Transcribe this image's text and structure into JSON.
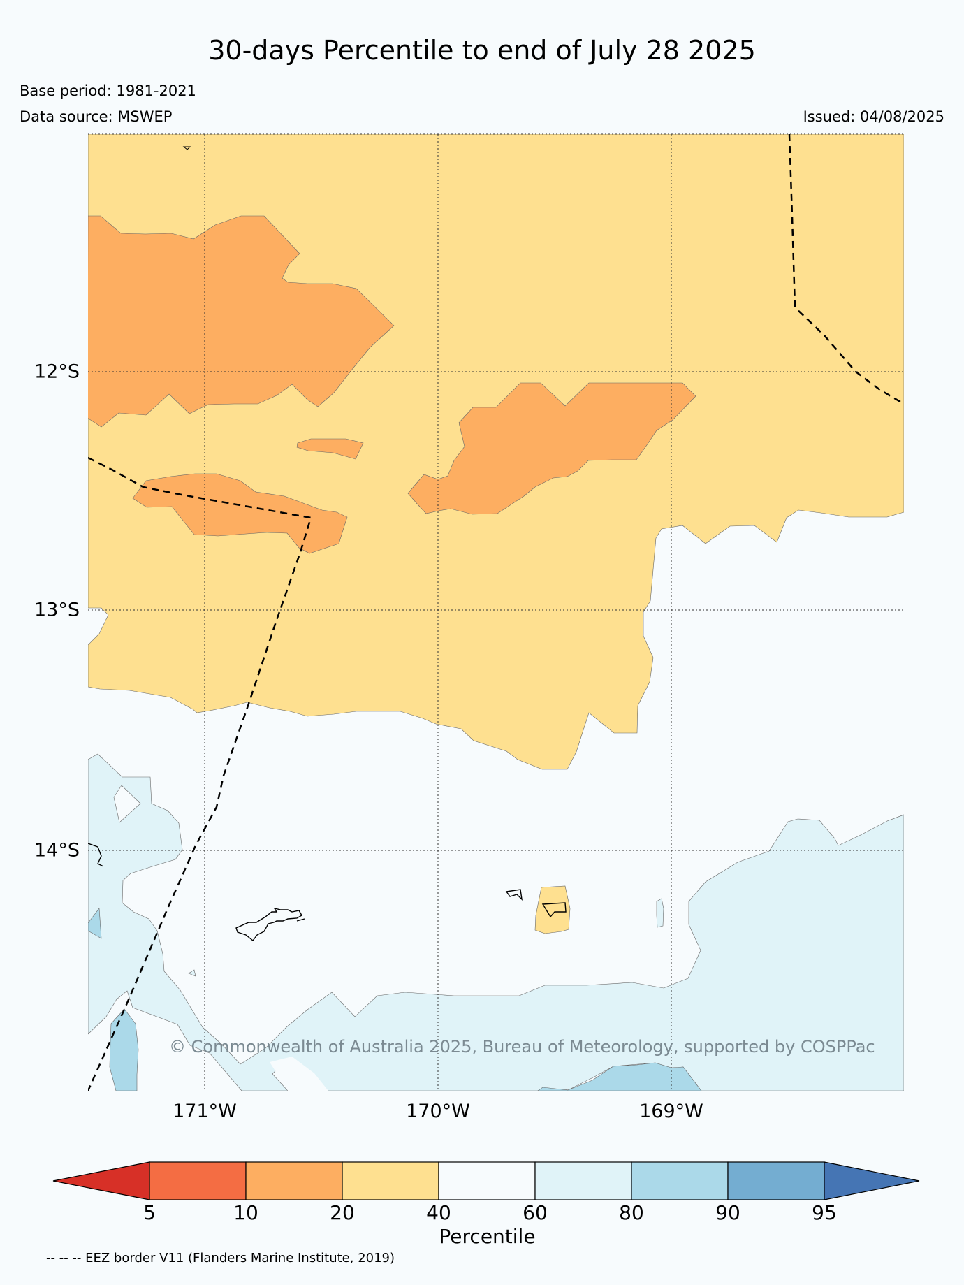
{
  "header": {
    "title": "30-days Percentile to end of July 28 2025",
    "base_period": "Base period: 1981-2021",
    "data_source": "Data source: MSWEP",
    "issued": "Issued: 04/08/2025"
  },
  "map": {
    "lat_labels": [
      "12°S",
      "13°S",
      "14°S"
    ],
    "lon_labels": [
      "171°W",
      "170°W",
      "169°W"
    ],
    "credit": "© Commonwealth of Australia 2025, Bureau of Meteorology, supported by COSPPac",
    "colors": {
      "below_5": "#d73027",
      "p5_10": "#f46d43",
      "p10_20": "#fdae61",
      "p20_40": "#fee090",
      "p40_60": "#f7fbfd",
      "p60_80": "#e0f3f8",
      "p80_90": "#abd9e9",
      "p90_95": "#74add1",
      "above_95": "#4575b4"
    }
  },
  "colorbar": {
    "label": "Percentile",
    "ticks": [
      "5",
      "10",
      "20",
      "40",
      "60",
      "80",
      "90",
      "95"
    ]
  },
  "legend": {
    "eez": "-- -- -- EEZ border V11 (Flanders Marine Institute, 2019)"
  }
}
